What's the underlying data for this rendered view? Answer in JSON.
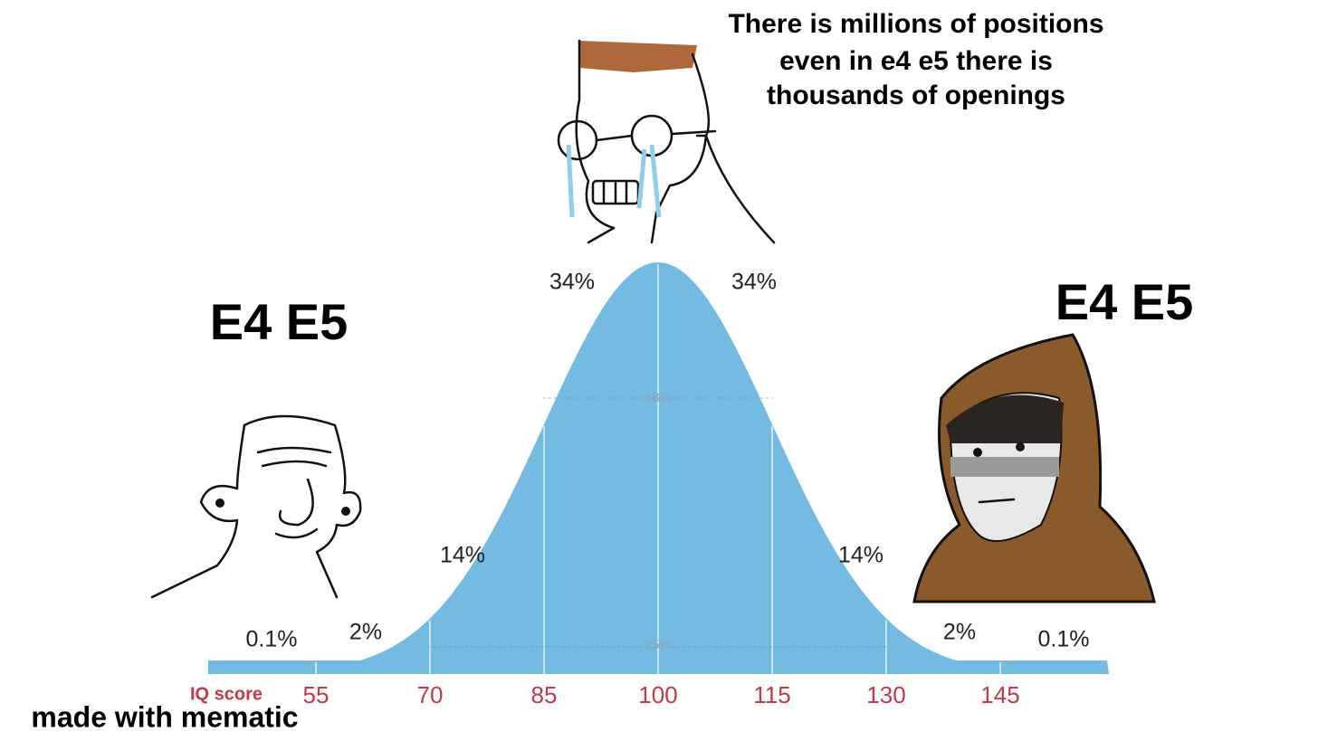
{
  "top_caption": [
    "There is millions of positions",
    "even in e4 e5 there is",
    "thousands of openings"
  ],
  "left_caption": "E4 E5",
  "right_caption": "E4 E5",
  "watermark": "made with mematic",
  "curve": {
    "axis_title": "IQ score",
    "ticks": [
      "55",
      "70",
      "85",
      "100",
      "115",
      "130",
      "145"
    ],
    "region_labels": [
      "0.1%",
      "2%",
      "14%",
      "34%",
      "34%",
      "14%",
      "2%",
      "0.1%"
    ],
    "inner_labels": [
      "68%",
      "95%"
    ]
  }
}
